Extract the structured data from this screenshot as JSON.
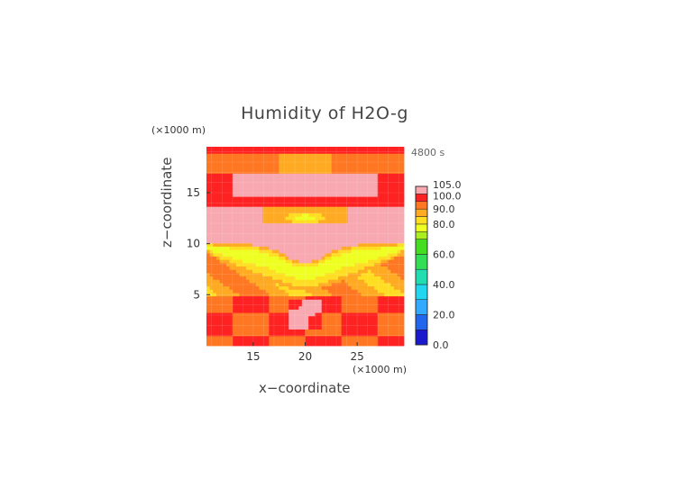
{
  "chart_data": {
    "type": "heatmap",
    "title": "Humidity of H2O-g",
    "time_label": "4800 s",
    "xlabel": "x−coordinate",
    "ylabel": "z−coordinate",
    "x_unit": "(×1000 m)",
    "y_unit": "(×1000 m)",
    "xlim": [
      10.5,
      29.5
    ],
    "ylim": [
      0,
      19.5
    ],
    "x_ticks": [
      "15",
      "20",
      "25"
    ],
    "y_ticks": [
      "5",
      "10",
      "15"
    ],
    "colorbar": {
      "range": [
        0,
        105
      ],
      "labels": [
        "0.0",
        "20.0",
        "40.0",
        "60.0",
        "80.0",
        "90.0",
        "100.0",
        "105.0"
      ],
      "bands": [
        {
          "from": 0,
          "to": 10,
          "color": "#1a1acc"
        },
        {
          "from": 10,
          "to": 20,
          "color": "#2266ee"
        },
        {
          "from": 20,
          "to": 30,
          "color": "#33aaff"
        },
        {
          "from": 30,
          "to": 40,
          "color": "#22d6f0"
        },
        {
          "from": 40,
          "to": 50,
          "color": "#22ddb0"
        },
        {
          "from": 50,
          "to": 60,
          "color": "#33dd55"
        },
        {
          "from": 60,
          "to": 70,
          "color": "#44dd22"
        },
        {
          "from": 70,
          "to": 75,
          "color": "#aaee22"
        },
        {
          "from": 75,
          "to": 80,
          "color": "#eeff22"
        },
        {
          "from": 80,
          "to": 85,
          "color": "#ffdd22"
        },
        {
          "from": 85,
          "to": 90,
          "color": "#ffaa22"
        },
        {
          "from": 90,
          "to": 95,
          "color": "#ff7722"
        },
        {
          "from": 95,
          "to": 100,
          "color": "#ff2222"
        },
        {
          "from": 100,
          "to": 105,
          "color": "#f8a8b0"
        }
      ]
    },
    "grid": true,
    "field_description": [
      {
        "z_range": [
          0,
          5
        ],
        "value": 96
      },
      {
        "z_range": [
          5,
          8
        ],
        "value": 84
      },
      {
        "z_range": [
          8,
          11
        ],
        "value": 88
      },
      {
        "z_range": [
          11,
          14
        ],
        "value": 102
      },
      {
        "z_range": [
          14,
          17
        ],
        "value": 101
      },
      {
        "z_range": [
          17,
          19.5
        ],
        "value": 97
      }
    ]
  }
}
